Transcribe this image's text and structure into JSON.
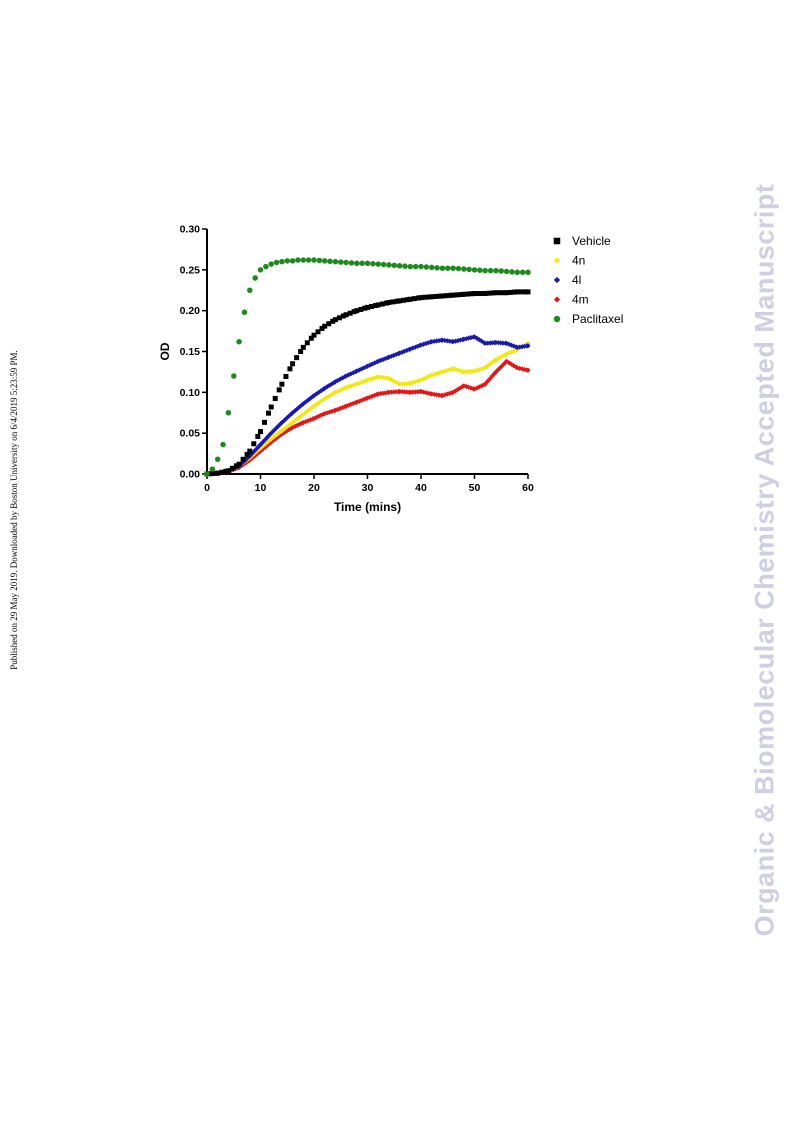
{
  "side_note": "Published on 29 May 2019. Downloaded by Boston University on 6/4/2019 5:23:59 PM.",
  "watermark": "Organic & Biomolecular Chemistry Accepted Manuscript",
  "chart_data": {
    "type": "scatter",
    "xlabel": "Time (mins)",
    "ylabel": "OD",
    "xlim": [
      0,
      60
    ],
    "ylim": [
      0,
      0.3
    ],
    "x_ticks": [
      "0",
      "10",
      "20",
      "30",
      "40",
      "50",
      "60"
    ],
    "y_ticks": [
      "0.00",
      "0.05",
      "0.10",
      "0.15",
      "0.20",
      "0.25",
      "0.30"
    ],
    "legend_position": "right",
    "series": [
      {
        "name": "Vehicle",
        "color": "#000000",
        "marker": "square",
        "x": [
          0,
          2,
          4,
          6,
          8,
          10,
          12,
          14,
          16,
          18,
          20,
          22,
          24,
          26,
          28,
          30,
          32,
          34,
          36,
          38,
          40,
          42,
          44,
          46,
          48,
          50,
          52,
          54,
          56,
          58,
          60
        ],
        "y": [
          0,
          0.001,
          0.004,
          0.012,
          0.028,
          0.052,
          0.082,
          0.11,
          0.135,
          0.155,
          0.17,
          0.181,
          0.189,
          0.195,
          0.2,
          0.204,
          0.207,
          0.21,
          0.212,
          0.214,
          0.216,
          0.217,
          0.218,
          0.219,
          0.22,
          0.221,
          0.221,
          0.222,
          0.222,
          0.223,
          0.223
        ]
      },
      {
        "name": "4n",
        "color": "#f0e81a",
        "marker": "diamond",
        "x": [
          0,
          2,
          4,
          6,
          8,
          10,
          12,
          14,
          16,
          18,
          20,
          22,
          24,
          26,
          28,
          30,
          32,
          34,
          36,
          38,
          40,
          42,
          44,
          46,
          48,
          50,
          52,
          54,
          56,
          58,
          60
        ],
        "y": [
          0,
          0.001,
          0.004,
          0.01,
          0.02,
          0.032,
          0.043,
          0.053,
          0.063,
          0.073,
          0.083,
          0.092,
          0.1,
          0.106,
          0.11,
          0.115,
          0.119,
          0.117,
          0.11,
          0.111,
          0.115,
          0.121,
          0.125,
          0.129,
          0.125,
          0.126,
          0.13,
          0.14,
          0.147,
          0.152,
          0.16
        ]
      },
      {
        "name": "4l",
        "color": "#1a1aaa",
        "marker": "diamond",
        "x": [
          0,
          2,
          4,
          6,
          8,
          10,
          12,
          14,
          16,
          18,
          20,
          22,
          24,
          26,
          28,
          30,
          32,
          34,
          36,
          38,
          40,
          42,
          44,
          46,
          48,
          50,
          52,
          54,
          56,
          58,
          60
        ],
        "y": [
          0,
          0.001,
          0.004,
          0.01,
          0.022,
          0.036,
          0.05,
          0.063,
          0.075,
          0.086,
          0.096,
          0.105,
          0.113,
          0.12,
          0.126,
          0.132,
          0.138,
          0.143,
          0.148,
          0.153,
          0.158,
          0.162,
          0.164,
          0.162,
          0.165,
          0.168,
          0.16,
          0.161,
          0.16,
          0.155,
          0.157
        ]
      },
      {
        "name": "4m",
        "color": "#e01818",
        "marker": "diamond",
        "x": [
          0,
          2,
          4,
          6,
          8,
          10,
          12,
          14,
          16,
          18,
          20,
          22,
          24,
          26,
          28,
          30,
          32,
          34,
          36,
          38,
          40,
          42,
          44,
          46,
          48,
          50,
          52,
          54,
          56,
          58,
          60
        ],
        "y": [
          0,
          0.001,
          0.003,
          0.008,
          0.017,
          0.028,
          0.039,
          0.049,
          0.057,
          0.063,
          0.068,
          0.074,
          0.078,
          0.083,
          0.088,
          0.093,
          0.098,
          0.1,
          0.101,
          0.1,
          0.101,
          0.098,
          0.096,
          0.1,
          0.108,
          0.104,
          0.11,
          0.125,
          0.138,
          0.13,
          0.127
        ]
      },
      {
        "name": "Paclitaxel",
        "color": "#1e8a1e",
        "marker": "circle",
        "x": [
          0,
          1,
          2,
          3,
          4,
          5,
          6,
          7,
          8,
          9,
          10,
          11,
          12,
          13,
          14,
          15,
          16,
          17,
          18,
          19,
          20,
          22,
          24,
          26,
          28,
          30,
          32,
          34,
          36,
          38,
          40,
          42,
          44,
          46,
          48,
          50,
          52,
          54,
          56,
          58,
          60
        ],
        "y": [
          0,
          0.006,
          0.018,
          0.036,
          0.075,
          0.12,
          0.162,
          0.198,
          0.225,
          0.24,
          0.25,
          0.254,
          0.257,
          0.259,
          0.26,
          0.261,
          0.261,
          0.262,
          0.262,
          0.262,
          0.262,
          0.261,
          0.26,
          0.259,
          0.258,
          0.258,
          0.257,
          0.256,
          0.255,
          0.254,
          0.254,
          0.253,
          0.252,
          0.252,
          0.251,
          0.25,
          0.249,
          0.249,
          0.248,
          0.247,
          0.247
        ]
      }
    ]
  }
}
